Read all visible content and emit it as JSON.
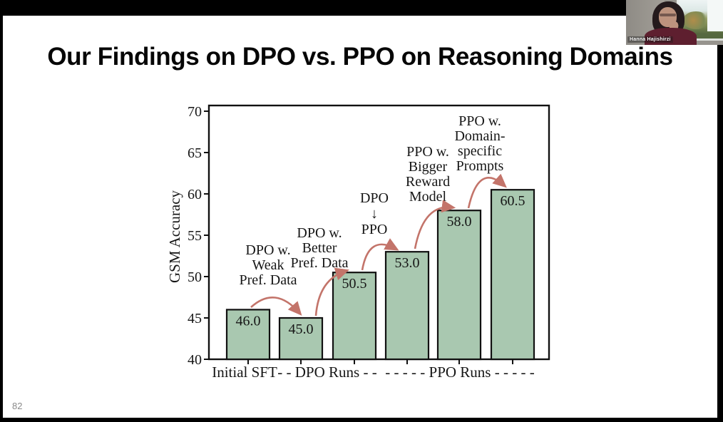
{
  "slide": {
    "title": "Our Findings on DPO vs. PPO on Reasoning Domains",
    "page_number": "82"
  },
  "webcam": {
    "participant_name": "Hanna Hajishirzi"
  },
  "chart_data": {
    "type": "bar",
    "title": "",
    "xlabel": "",
    "ylabel": "GSM Accuracy",
    "ylim": [
      40,
      70
    ],
    "yticks": [
      40,
      45,
      50,
      55,
      60,
      65,
      70
    ],
    "grid": false,
    "legend_position": "none",
    "categories": [
      "Initial SFT",
      "DPO run (weak pref. data)",
      "DPO run (better pref. data)",
      "PPO run (DPO to PPO)",
      "PPO run (bigger reward model)",
      "PPO run (domain-specific prompts)"
    ],
    "values": [
      46.0,
      45.0,
      50.5,
      53.0,
      58.0,
      60.5
    ],
    "bar_labels": [
      "46.0",
      "45.0",
      "50.5",
      "53.0",
      "58.0",
      "60.5"
    ],
    "x_group_labels": [
      "Initial SFT",
      "- - DPO Runs - -",
      "- - - - - PPO Runs - - - - -"
    ],
    "annotations": [
      {
        "lines": [
          "DPO w.",
          "Weak",
          "Pref. Data"
        ],
        "from_bar": 0,
        "to_bar": 1
      },
      {
        "lines": [
          "DPO w.",
          "Better",
          "Pref. Data"
        ],
        "from_bar": 1,
        "to_bar": 2
      },
      {
        "lines": [
          "DPO",
          "↓",
          "PPO"
        ],
        "from_bar": 2,
        "to_bar": 3
      },
      {
        "lines": [
          "PPO w.",
          "Bigger",
          "Reward",
          "Model"
        ],
        "from_bar": 3,
        "to_bar": 4
      },
      {
        "lines": [
          "PPO w.",
          "Domain-",
          "specific",
          "Prompts"
        ],
        "from_bar": 4,
        "to_bar": 5
      }
    ],
    "colors": {
      "bar_fill": "#a9c8b0",
      "bar_stroke": "#111111",
      "arrow": "#c3746a",
      "text": "#161616"
    }
  }
}
